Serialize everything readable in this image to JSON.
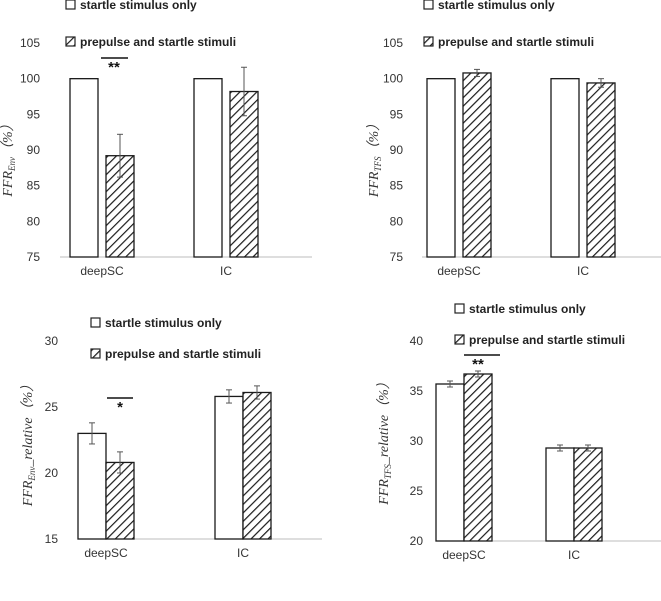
{
  "legend": {
    "startle_only": "startle stimulus only",
    "prepulse_startle": "prepulse and startle stimuli"
  },
  "chart_data": [
    {
      "type": "bar",
      "title": "",
      "xlabel": "",
      "ylabel": "FFR_Env (%)",
      "ylabel_main": "FFR",
      "ylabel_sub": "Env",
      "ylabel_suffix": "（%）",
      "categories": [
        "deepSC",
        "IC"
      ],
      "ylim": [
        75,
        105
      ],
      "yticks": [
        75,
        80,
        85,
        90,
        95,
        100,
        105
      ],
      "grid": false,
      "series": [
        {
          "name": "startle stimulus only",
          "values": [
            100,
            100
          ],
          "errors": [
            0,
            0
          ]
        },
        {
          "name": "prepulse and startle stimuli",
          "values": [
            89.2,
            98.2
          ],
          "errors": [
            3.0,
            3.4
          ]
        }
      ],
      "annotations": [
        {
          "category": "deepSC",
          "text": "**"
        }
      ]
    },
    {
      "type": "bar",
      "title": "",
      "xlabel": "",
      "ylabel": "FFR_TFS (%)",
      "ylabel_main": "FFR",
      "ylabel_sub": "TFS",
      "ylabel_suffix": "（%）",
      "categories": [
        "deepSC",
        "IC"
      ],
      "ylim": [
        75,
        105
      ],
      "yticks": [
        75,
        80,
        85,
        90,
        95,
        100,
        105
      ],
      "grid": false,
      "series": [
        {
          "name": "startle stimulus only",
          "values": [
            100,
            100
          ],
          "errors": [
            0,
            0
          ]
        },
        {
          "name": "prepulse and startle stimuli",
          "values": [
            100.8,
            99.4
          ],
          "errors": [
            0.5,
            0.6
          ]
        }
      ],
      "annotations": []
    },
    {
      "type": "bar",
      "title": "",
      "xlabel": "",
      "ylabel": "FFR_Env_relative (%)",
      "ylabel_main": "FFR",
      "ylabel_sub": "Env",
      "ylabel_suffix": "_relative（%）",
      "categories": [
        "deepSC",
        "IC"
      ],
      "ylim": [
        15,
        30
      ],
      "yticks": [
        15,
        20,
        25,
        30
      ],
      "grid": false,
      "series": [
        {
          "name": "startle stimulus only",
          "values": [
            23.0,
            25.8
          ],
          "errors": [
            0.8,
            0.5
          ]
        },
        {
          "name": "prepulse and startle stimuli",
          "values": [
            20.8,
            26.1
          ],
          "errors": [
            0.8,
            0.5
          ]
        }
      ],
      "annotations": [
        {
          "category": "deepSC",
          "text": "*"
        }
      ]
    },
    {
      "type": "bar",
      "title": "",
      "xlabel": "",
      "ylabel": "FFR_TFS_relative (%)",
      "ylabel_main": "FFR",
      "ylabel_sub": "TFS",
      "ylabel_suffix": "_relative（%）",
      "categories": [
        "deepSC",
        "IC"
      ],
      "ylim": [
        20,
        40
      ],
      "yticks": [
        20,
        25,
        30,
        35,
        40
      ],
      "grid": false,
      "series": [
        {
          "name": "startle stimulus only",
          "values": [
            35.7,
            29.3
          ],
          "errors": [
            0.3,
            0.3
          ]
        },
        {
          "name": "prepulse and startle stimuli",
          "values": [
            36.7,
            29.3
          ],
          "errors": [
            0.3,
            0.3
          ]
        }
      ],
      "annotations": [
        {
          "category": "deepSC",
          "text": "**"
        }
      ]
    }
  ]
}
